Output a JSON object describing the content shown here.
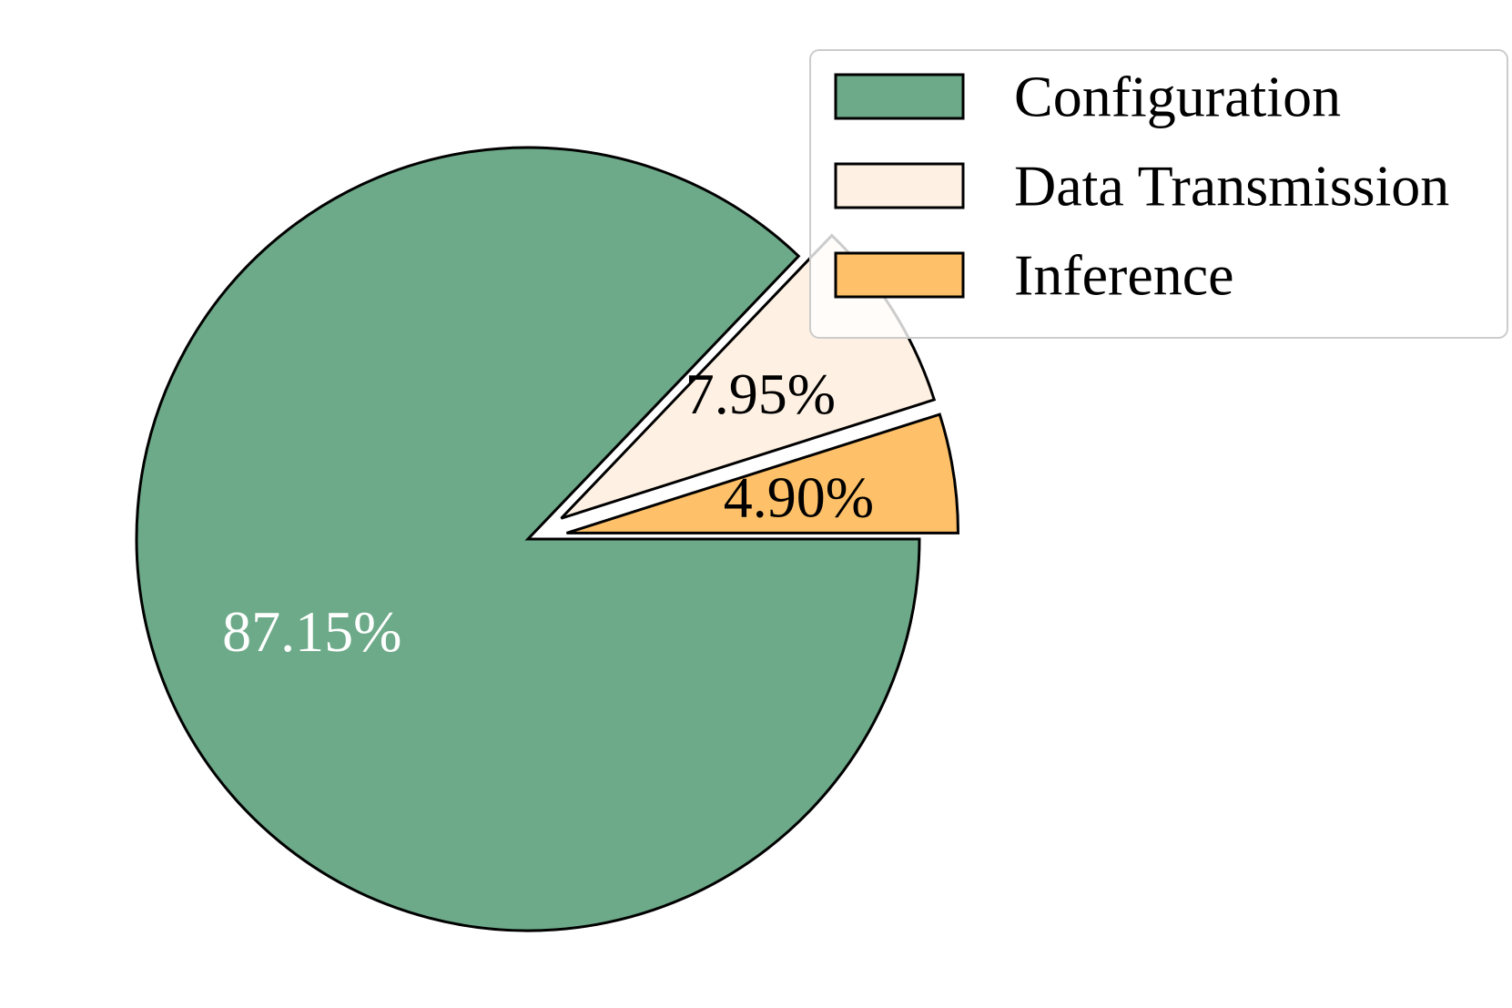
{
  "chart_data": {
    "type": "pie",
    "slices": [
      {
        "label": "Configuration",
        "value": 87.15,
        "display": "87.15%",
        "color": "#6daa89",
        "text_color": "#ffffff",
        "exploded": false
      },
      {
        "label": "Data Transmission",
        "value": 7.95,
        "display": "7.95%",
        "color": "#fef0e2",
        "text_color": "#000000",
        "exploded": true
      },
      {
        "label": "Inference",
        "value": 4.9,
        "display": "4.90%",
        "color": "#fec068",
        "text_color": "#000000",
        "exploded": true
      }
    ],
    "start_angle_deg": 0,
    "direction": "clockwise",
    "legend": {
      "placement": "top-right",
      "entries": [
        "Configuration",
        "Data Transmission",
        "Inference"
      ]
    },
    "edge_color": "#000000"
  }
}
